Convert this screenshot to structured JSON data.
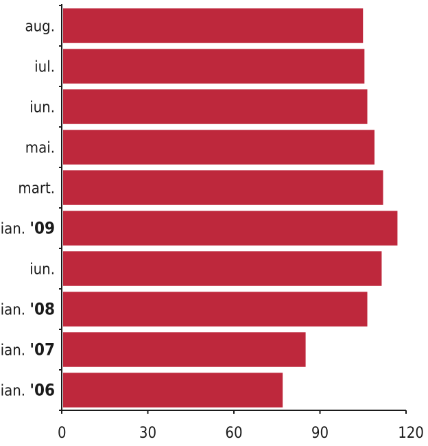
{
  "chart_data": {
    "type": "bar",
    "orientation": "horizontal",
    "categories": [
      {
        "label": "aug.",
        "year": ""
      },
      {
        "label": "iul.",
        "year": ""
      },
      {
        "label": "iun.",
        "year": ""
      },
      {
        "label": "mai.",
        "year": ""
      },
      {
        "label": "mart.",
        "year": ""
      },
      {
        "label": "ian. ",
        "year": "'09"
      },
      {
        "label": "iun.",
        "year": ""
      },
      {
        "label": "ian. ",
        "year": "'08"
      },
      {
        "label": "ian. ",
        "year": "'07"
      },
      {
        "label": "ian. ",
        "year": "'06"
      }
    ],
    "values": [
      105,
      105.5,
      106.5,
      109,
      112,
      117,
      111.5,
      106.5,
      85,
      77
    ],
    "xlim": [
      0,
      120
    ],
    "xticks": [
      "0",
      "30",
      "60",
      "90",
      "120"
    ],
    "bar_color": "#be283c",
    "grid": false
  }
}
